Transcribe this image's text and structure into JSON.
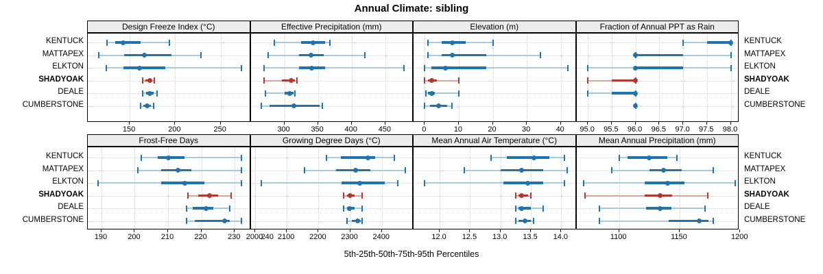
{
  "title": "Annual Climate: sibling",
  "caption": "5th-25th-50th-75th-95th Percentiles",
  "sites": [
    "KENTUCK",
    "MATTAPEX",
    "ELKTON",
    "SHADYOAK",
    "DEALE",
    "CUMBERSTONE"
  ],
  "highlight_site": "SHADYOAK",
  "percentile_keys": [
    "p5",
    "p25",
    "p50",
    "p75",
    "p95"
  ],
  "colors": {
    "series_main": "#1f74b0",
    "series_light": "#a6c9e2",
    "highlight_main": "#b23730",
    "highlight_light": "#dba49e",
    "strip_bg": "#ececec",
    "grid": "#c9c9c9",
    "panel_border": "#000000",
    "text": "#000000"
  },
  "chart_data": [
    {
      "type": "boxplot",
      "title": "Design Freeze Index (°C)",
      "xlim": [
        104,
        283
      ],
      "ticks": [
        150,
        200,
        250
      ],
      "tick_decimals": 0,
      "series": [
        {
          "site": "KENTUCK",
          "values": [
            125,
            134,
            143,
            162,
            194
          ]
        },
        {
          "site": "MATTAPEX",
          "values": [
            116,
            144,
            166,
            196,
            228
          ]
        },
        {
          "site": "ELKTON",
          "values": [
            124,
            143,
            161,
            189,
            273
          ]
        },
        {
          "site": "SHADYOAK",
          "values": [
            164,
            167,
            172,
            175,
            177
          ]
        },
        {
          "site": "DEALE",
          "values": [
            164,
            168,
            172,
            176,
            180
          ]
        },
        {
          "site": "CUMBERSTONE",
          "values": [
            162,
            165,
            169,
            173,
            176
          ]
        }
      ]
    },
    {
      "type": "boxplot",
      "title": "Effective Precipitation (mm)",
      "xlim": [
        250,
        492
      ],
      "ticks": [
        300,
        350,
        400,
        450
      ],
      "tick_decimals": 0,
      "series": [
        {
          "site": "KENTUCK",
          "values": [
            285,
            325,
            343,
            361,
            368
          ]
        },
        {
          "site": "MATTAPEX",
          "values": [
            276,
            322,
            340,
            359,
            420
          ]
        },
        {
          "site": "ELKTON",
          "values": [
            270,
            322,
            341,
            361,
            478
          ]
        },
        {
          "site": "SHADYOAK",
          "values": [
            270,
            296,
            310,
            316,
            319
          ]
        },
        {
          "site": "DEALE",
          "values": [
            272,
            300,
            308,
            314,
            316
          ]
        },
        {
          "site": "CUMBERSTONE",
          "values": [
            266,
            278,
            314,
            352,
            356
          ]
        }
      ]
    },
    {
      "type": "boxplot",
      "title": "Elevation (m)",
      "xlim": [
        -3.3,
        44.6
      ],
      "ticks": [
        0,
        10,
        20,
        30,
        40
      ],
      "tick_decimals": 0,
      "series": [
        {
          "site": "KENTUCK",
          "values": [
            1,
            5,
            8,
            12,
            20
          ]
        },
        {
          "site": "MATTAPEX",
          "values": [
            1,
            5,
            8,
            18,
            34
          ]
        },
        {
          "site": "ELKTON",
          "values": [
            0,
            2,
            6,
            18,
            42
          ]
        },
        {
          "site": "SHADYOAK",
          "values": [
            0,
            1,
            2,
            3.5,
            10
          ]
        },
        {
          "site": "DEALE",
          "values": [
            0.3,
            1,
            2,
            3,
            10
          ]
        },
        {
          "site": "CUMBERSTONE",
          "values": [
            0,
            1.5,
            4,
            6.5,
            8
          ]
        }
      ]
    },
    {
      "type": "boxplot",
      "title": "Fraction of Annual PPT as Rain",
      "xlim": [
        94.76,
        98.18
      ],
      "ticks": [
        95.0,
        95.5,
        96.0,
        96.5,
        97.0,
        97.5,
        98.0
      ],
      "tick_decimals": 1,
      "series": [
        {
          "site": "KENTUCK",
          "values": [
            97,
            97.5,
            98,
            98,
            98
          ]
        },
        {
          "site": "MATTAPEX",
          "values": [
            96,
            96,
            96,
            97,
            98
          ]
        },
        {
          "site": "ELKTON",
          "values": [
            95,
            96,
            96,
            97,
            98
          ]
        },
        {
          "site": "SHADYOAK",
          "values": [
            95,
            95.5,
            96,
            96,
            96
          ]
        },
        {
          "site": "DEALE",
          "values": [
            95,
            95.5,
            96,
            96,
            96
          ]
        },
        {
          "site": "CUMBERSTONE",
          "values": [
            96,
            96,
            96,
            96,
            96
          ]
        }
      ]
    },
    {
      "type": "boxplot",
      "title": "Frost-Free Days",
      "xlim": [
        185.9,
        234.8
      ],
      "ticks": [
        190,
        200,
        210,
        220,
        230,
        240
      ],
      "tick_decimals": 0,
      "series": [
        {
          "site": "KENTUCK",
          "values": [
            202,
            207,
            210,
            215,
            232
          ]
        },
        {
          "site": "MATTAPEX",
          "values": [
            201,
            208,
            213,
            217,
            232
          ]
        },
        {
          "site": "ELKTON",
          "values": [
            189,
            208,
            215,
            221,
            232
          ]
        },
        {
          "site": "SHADYOAK",
          "values": [
            216,
            219,
            222.5,
            225,
            229
          ]
        },
        {
          "site": "DEALE",
          "values": [
            215.5,
            217.5,
            221.5,
            223.5,
            228.5
          ]
        },
        {
          "site": "CUMBERSTONE",
          "values": [
            215.5,
            218,
            227,
            228.5,
            232
          ]
        }
      ]
    },
    {
      "type": "boxplot",
      "title": "Growing Degree Days (°C)",
      "xlim": [
        1986,
        2500
      ],
      "ticks": [
        2000,
        2100,
        2200,
        2300,
        2400
      ],
      "tick_decimals": 0,
      "series": [
        {
          "site": "KENTUCK",
          "values": [
            2225,
            2270,
            2355,
            2378,
            2440
          ]
        },
        {
          "site": "MATTAPEX",
          "values": [
            2155,
            2255,
            2318,
            2364,
            2474
          ]
        },
        {
          "site": "ELKTON",
          "values": [
            2020,
            2273,
            2331,
            2410,
            2451
          ]
        },
        {
          "site": "SHADYOAK",
          "values": [
            2280,
            2289,
            2300,
            2314,
            2338
          ]
        },
        {
          "site": "DEALE",
          "values": [
            2280,
            2289,
            2298,
            2314,
            2337
          ]
        },
        {
          "site": "CUMBERSTONE",
          "values": [
            2290,
            2306,
            2324,
            2333,
            2337
          ]
        }
      ]
    },
    {
      "type": "boxplot",
      "title": "Mean Annual Air Temperature (°C)",
      "xlim": [
        11.57,
        14.25
      ],
      "ticks": [
        12.0,
        12.5,
        13.0,
        13.5,
        14.0
      ],
      "tick_decimals": 1,
      "series": [
        {
          "site": "KENTUCK",
          "values": [
            12.85,
            13.1,
            13.55,
            13.8,
            14.05
          ]
        },
        {
          "site": "MATTAPEX",
          "values": [
            12.4,
            13.0,
            13.35,
            13.7,
            14.1
          ]
        },
        {
          "site": "ELKTON",
          "values": [
            11.75,
            13.05,
            13.45,
            13.7,
            14.05
          ]
        },
        {
          "site": "SHADYOAK",
          "values": [
            13.25,
            13.3,
            13.35,
            13.45,
            13.5
          ]
        },
        {
          "site": "DEALE",
          "values": [
            13.25,
            13.3,
            13.35,
            13.5,
            13.7
          ]
        },
        {
          "site": "CUMBERSTONE",
          "values": [
            13.25,
            13.3,
            13.4,
            13.5,
            13.55
          ]
        }
      ]
    },
    {
      "type": "boxplot",
      "title": "Mean Annual Precipitation (mm)",
      "xlim": [
        1064.8,
        1199.3
      ],
      "ticks": [
        1100,
        1150,
        1200
      ],
      "tick_decimals": 0,
      "series": [
        {
          "site": "KENTUCK",
          "values": [
            1100,
            1107,
            1125,
            1140,
            1148
          ]
        },
        {
          "site": "MATTAPEX",
          "values": [
            1094,
            1125,
            1137,
            1152,
            1178
          ]
        },
        {
          "site": "ELKTON",
          "values": [
            1071,
            1121,
            1140,
            1154,
            1196
          ]
        },
        {
          "site": "SHADYOAK",
          "values": [
            1072,
            1121,
            1134,
            1144,
            1173
          ]
        },
        {
          "site": "DEALE",
          "values": [
            1084,
            1122,
            1134,
            1143,
            1171
          ]
        },
        {
          "site": "CUMBERSTONE",
          "values": [
            1084,
            1141,
            1166,
            1174,
            1178
          ]
        }
      ]
    }
  ]
}
